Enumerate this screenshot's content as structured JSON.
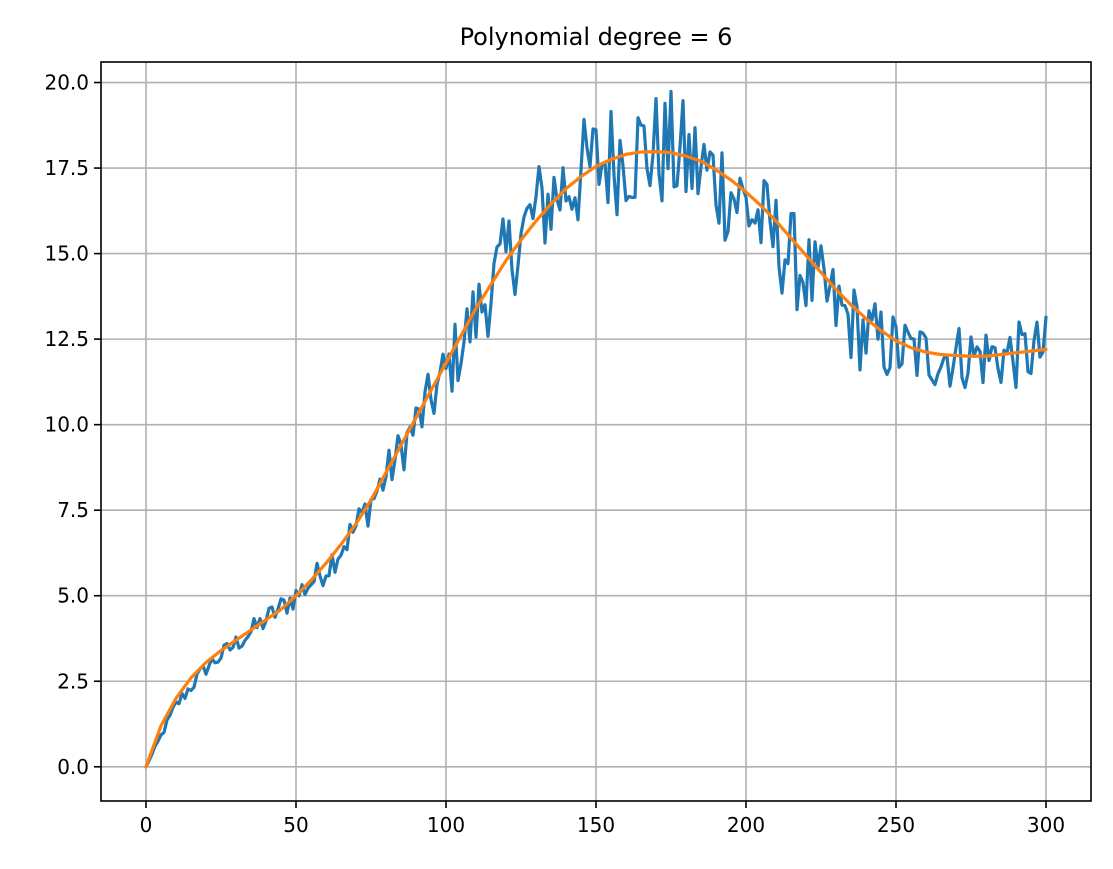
{
  "chart_data": {
    "type": "line",
    "title": "Polynomial degree = 6",
    "xlabel": "",
    "ylabel": "",
    "xlim": [
      -15,
      315
    ],
    "ylim": [
      -1,
      20.6
    ],
    "grid": true,
    "x_ticks": [
      0,
      50,
      100,
      150,
      200,
      250,
      300
    ],
    "x_tick_labels": [
      "0",
      "50",
      "100",
      "150",
      "200",
      "250",
      "300"
    ],
    "y_ticks": [
      0.0,
      2.5,
      5.0,
      7.5,
      10.0,
      12.5,
      15.0,
      17.5,
      20.0
    ],
    "y_tick_labels": [
      "0.0",
      "2.5",
      "5.0",
      "7.5",
      "10.0",
      "12.5",
      "15.0",
      "17.5",
      "20.0"
    ],
    "series": [
      {
        "color": "#1f77b4",
        "style": "noisy-line",
        "x": [
          0,
          10,
          20,
          30,
          40,
          50,
          60,
          70,
          80,
          90,
          100,
          110,
          120,
          130,
          140,
          150,
          160,
          170,
          175,
          180,
          190,
          200,
          210,
          220,
          230,
          240,
          250,
          260,
          270,
          280,
          290,
          300
        ],
        "y": [
          0.0,
          1.8,
          2.9,
          3.6,
          4.3,
          5.0,
          5.8,
          7.0,
          8.5,
          10.0,
          11.5,
          13.2,
          14.8,
          16.2,
          17.0,
          17.6,
          18.0,
          18.0,
          18.0,
          17.7,
          17.2,
          16.4,
          15.4,
          14.4,
          13.4,
          12.6,
          12.2,
          12.0,
          12.0,
          12.0,
          12.0,
          12.2
        ],
        "noise_amplitude": [
          0.0,
          0.2,
          0.25,
          0.3,
          0.35,
          0.4,
          0.45,
          0.55,
          0.65,
          0.8,
          1.0,
          1.2,
          1.4,
          1.5,
          1.6,
          1.7,
          1.8,
          1.8,
          1.8,
          1.8,
          1.7,
          1.6,
          1.5,
          1.4,
          1.3,
          1.2,
          1.1,
          1.0,
          1.0,
          1.0,
          1.0,
          1.0
        ],
        "num_samples": 300
      },
      {
        "color": "#ff7f0e",
        "style": "smooth-line",
        "x": [
          0,
          5,
          10,
          15,
          20,
          25,
          30,
          35,
          40,
          45,
          50,
          55,
          60,
          65,
          70,
          75,
          80,
          85,
          90,
          95,
          100,
          105,
          110,
          115,
          120,
          125,
          130,
          135,
          140,
          145,
          150,
          155,
          160,
          165,
          170,
          175,
          180,
          185,
          190,
          195,
          200,
          205,
          210,
          215,
          220,
          225,
          230,
          235,
          240,
          245,
          250,
          255,
          260,
          265,
          270,
          275,
          280,
          285,
          290,
          295,
          300
        ],
        "y": [
          0.0,
          1.2,
          2.0,
          2.6,
          3.05,
          3.4,
          3.7,
          4.0,
          4.3,
          4.6,
          5.0,
          5.45,
          5.95,
          6.5,
          7.1,
          7.8,
          8.6,
          9.4,
          10.2,
          11.0,
          11.8,
          12.6,
          13.4,
          14.1,
          14.8,
          15.4,
          15.95,
          16.45,
          16.9,
          17.25,
          17.55,
          17.75,
          17.9,
          17.97,
          17.98,
          17.95,
          17.85,
          17.7,
          17.45,
          17.15,
          16.8,
          16.4,
          15.95,
          15.45,
          14.95,
          14.45,
          13.95,
          13.5,
          13.1,
          12.75,
          12.45,
          12.25,
          12.12,
          12.05,
          12.02,
          12.0,
          12.0,
          12.05,
          12.1,
          12.15,
          12.2
        ]
      }
    ]
  }
}
